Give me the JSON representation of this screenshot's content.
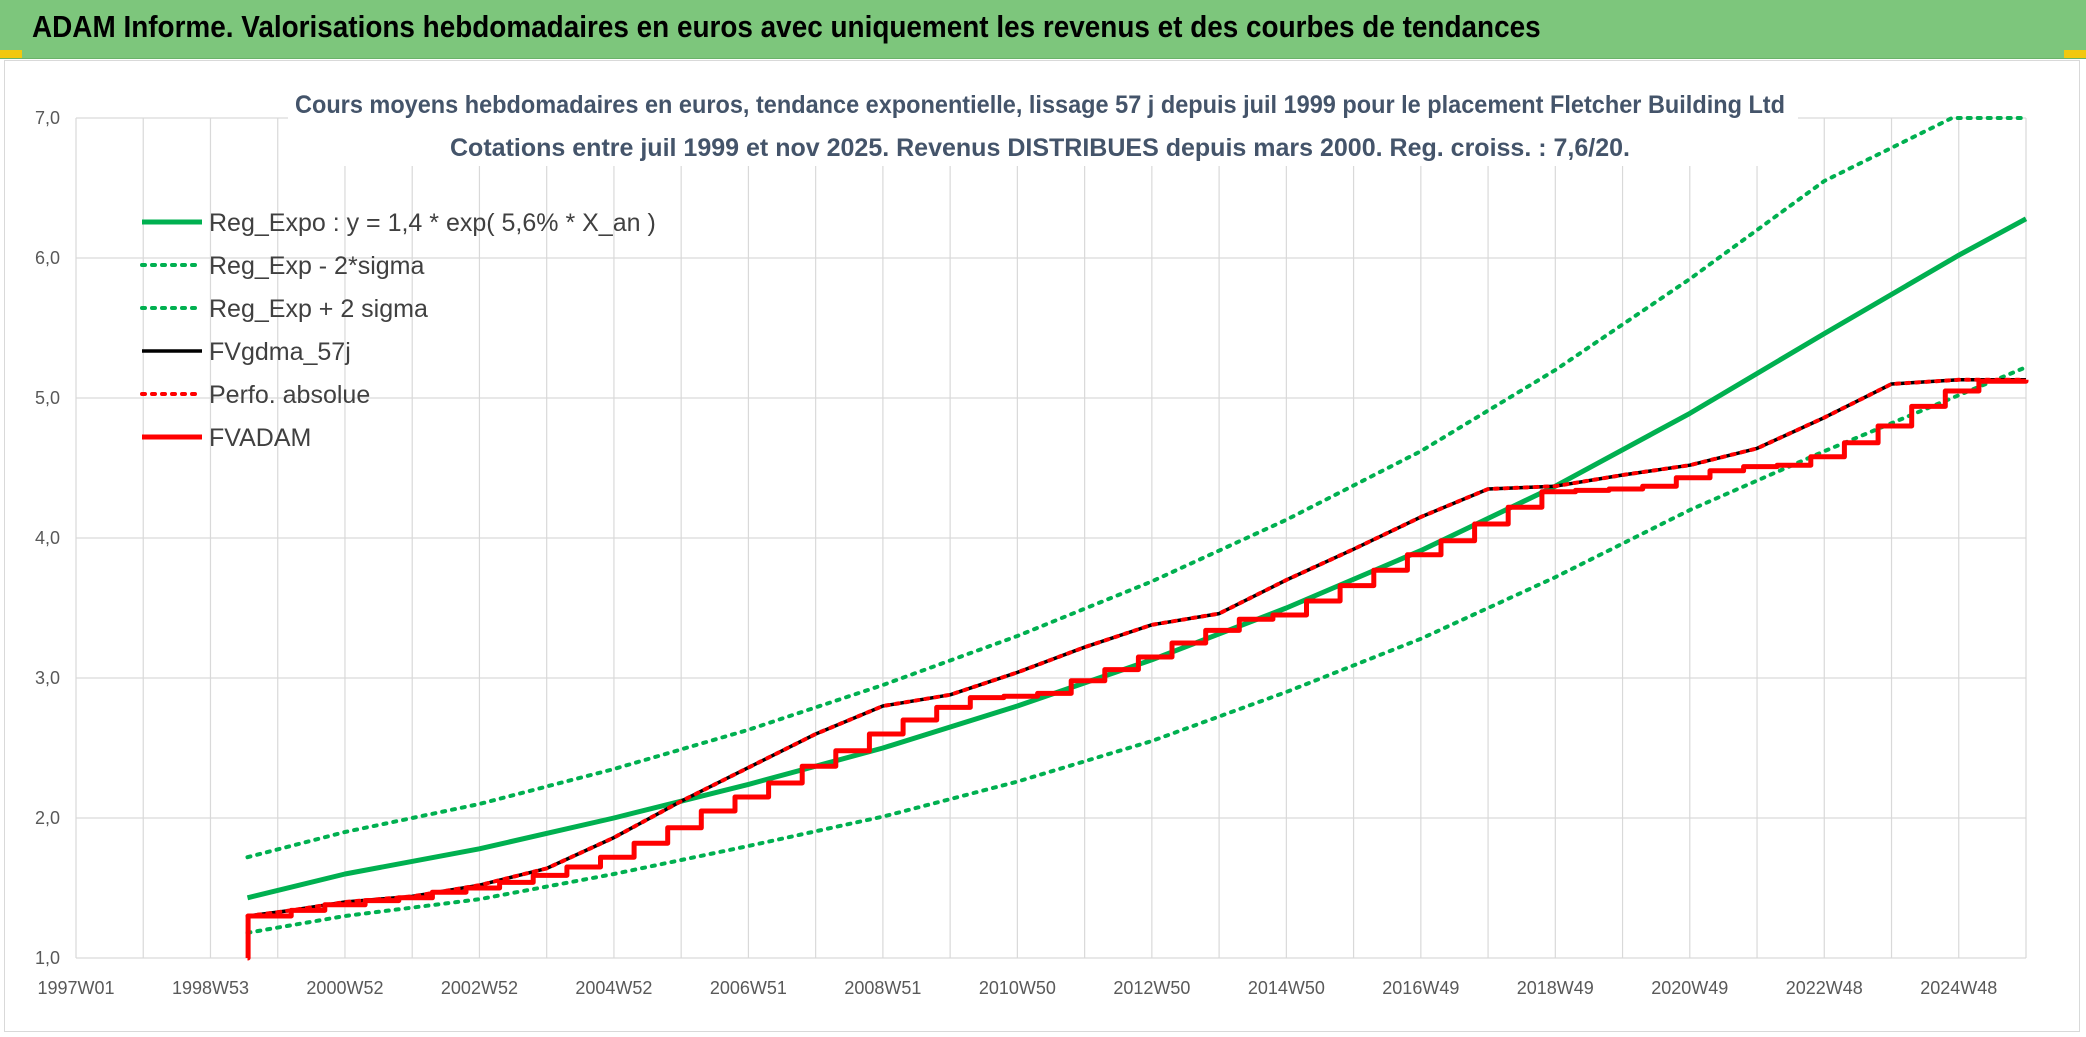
{
  "header": {
    "title": "ADAM Informe. Valorisations hebdomadaires en euros avec uniquement les revenus et des courbes de tendances"
  },
  "colors": {
    "header_bg": "#7dc67c",
    "trend": "#00b050",
    "fvgdma": "#000000",
    "fvadam": "#ff0000",
    "perfo": "#ff0000",
    "grid": "#d9d9d9",
    "axis_text": "#595959",
    "title_text": "#44546a"
  },
  "chart_data": {
    "type": "line",
    "title": "Cours moyens hebdomadaires en euros, tendance exponentielle, lissage 57 j depuis juil 1999 pour le placement Fletcher Building Ltd",
    "subtitle": "Cotations entre juil 1999  et nov 2025. Revenus DISTRIBUES depuis mars 2000. Reg. croiss. : 7,6/20.",
    "xlabel": "",
    "ylabel": "",
    "x_ticks": [
      "1997W01",
      "1998W53",
      "2000W52",
      "2002W52",
      "2004W52",
      "2006W51",
      "2008W51",
      "2010W50",
      "2012W50",
      "2014W50",
      "2016W49",
      "2018W49",
      "2020W49",
      "2022W48",
      "2024W48"
    ],
    "xlim": [
      1997.0,
      2026.0
    ],
    "ylim": [
      1.0,
      7.0
    ],
    "y_ticks": [
      "1,0",
      "2,0",
      "3,0",
      "4,0",
      "5,0",
      "6,0",
      "7,0"
    ],
    "y_tick_values": [
      1,
      2,
      3,
      4,
      5,
      6,
      7
    ],
    "grid": true,
    "legend_position": "top-left",
    "series": [
      {
        "name": "Reg_Expo : y = 1,4 * exp( 5,6% *  X_an )",
        "style": "solid-thick",
        "color": "#00b050",
        "x": [
          1999.55,
          2001,
          2003,
          2005,
          2007,
          2009,
          2011,
          2013,
          2015,
          2017,
          2019,
          2021,
          2023,
          2025,
          2026.0
        ],
        "y": [
          1.43,
          1.6,
          1.78,
          2.0,
          2.24,
          2.5,
          2.8,
          3.13,
          3.5,
          3.91,
          4.37,
          4.89,
          5.46,
          6.02,
          6.28
        ]
      },
      {
        "name": "Reg_Exp - 2*sigma",
        "style": "dotted",
        "color": "#00b050",
        "x": [
          1999.55,
          2001,
          2003,
          2005,
          2007,
          2009,
          2011,
          2013,
          2015,
          2017,
          2019,
          2021,
          2023,
          2025,
          2026.0
        ],
        "y": [
          1.18,
          1.3,
          1.42,
          1.6,
          1.8,
          2.01,
          2.26,
          2.55,
          2.9,
          3.28,
          3.72,
          4.2,
          4.62,
          5.02,
          5.22
        ]
      },
      {
        "name": "Reg_Exp + 2 sigma",
        "style": "dotted",
        "color": "#00b050",
        "x": [
          1999.55,
          2001,
          2003,
          2005,
          2007,
          2009,
          2011,
          2013,
          2015,
          2017,
          2019,
          2021,
          2023,
          2024.9,
          2026.0
        ],
        "y": [
          1.72,
          1.9,
          2.1,
          2.35,
          2.63,
          2.95,
          3.3,
          3.69,
          4.13,
          4.62,
          5.2,
          5.85,
          6.55,
          7.0,
          7.0
        ]
      },
      {
        "name": "FVgdma_57j",
        "style": "solid",
        "color": "#000000",
        "x": [
          1999.55,
          2000.2,
          2001,
          2002,
          2003,
          2004,
          2005,
          2006,
          2007,
          2008,
          2009,
          2010,
          2011,
          2012,
          2013,
          2014,
          2015,
          2016,
          2017,
          2018,
          2019,
          2020,
          2021,
          2022,
          2023,
          2024,
          2025,
          2026.0
        ],
        "y": [
          1.3,
          1.34,
          1.4,
          1.44,
          1.52,
          1.64,
          1.86,
          2.12,
          2.36,
          2.6,
          2.8,
          2.88,
          3.04,
          3.22,
          3.38,
          3.46,
          3.7,
          3.92,
          4.15,
          4.35,
          4.37,
          4.45,
          4.52,
          4.64,
          4.86,
          5.1,
          5.13,
          5.13
        ]
      },
      {
        "name": "Perfo. absolue",
        "style": "dotted",
        "color": "#ff0000",
        "x": [
          1999.55,
          2000.2,
          2001,
          2002,
          2003,
          2004,
          2005,
          2006,
          2007,
          2008,
          2009,
          2010,
          2011,
          2012,
          2013,
          2014,
          2015,
          2016,
          2017,
          2018,
          2019,
          2020,
          2021,
          2022,
          2023,
          2024,
          2025,
          2026.0
        ],
        "y": [
          1.3,
          1.34,
          1.4,
          1.44,
          1.52,
          1.64,
          1.86,
          2.12,
          2.36,
          2.6,
          2.8,
          2.88,
          3.04,
          3.22,
          3.38,
          3.46,
          3.7,
          3.92,
          4.15,
          4.35,
          4.37,
          4.45,
          4.52,
          4.64,
          4.86,
          5.1,
          5.13,
          5.13
        ]
      },
      {
        "name": "FVADAM",
        "style": "step-thick",
        "color": "#ff0000",
        "x": [
          1999.55,
          1999.56,
          2000.2,
          2000.7,
          2001.3,
          2001.8,
          2002.3,
          2002.8,
          2003.3,
          2003.8,
          2004.3,
          2004.8,
          2005.3,
          2005.8,
          2006.3,
          2006.8,
          2007.3,
          2007.8,
          2008.3,
          2008.8,
          2009.3,
          2009.8,
          2010.3,
          2010.8,
          2011.3,
          2011.8,
          2012.3,
          2012.8,
          2013.3,
          2013.8,
          2014.3,
          2014.8,
          2015.3,
          2015.8,
          2016.3,
          2016.8,
          2017.3,
          2017.8,
          2018.3,
          2018.8,
          2019.3,
          2019.8,
          2020.3,
          2020.8,
          2021.3,
          2021.8,
          2022.3,
          2022.8,
          2023.3,
          2023.8,
          2024.3,
          2024.8,
          2025.3,
          2026.0
        ],
        "y": [
          1.0,
          1.3,
          1.34,
          1.38,
          1.41,
          1.43,
          1.47,
          1.5,
          1.54,
          1.59,
          1.65,
          1.72,
          1.82,
          1.93,
          2.05,
          2.15,
          2.25,
          2.37,
          2.48,
          2.6,
          2.7,
          2.79,
          2.86,
          2.87,
          2.89,
          2.98,
          3.06,
          3.15,
          3.25,
          3.34,
          3.42,
          3.45,
          3.55,
          3.66,
          3.77,
          3.88,
          3.98,
          4.1,
          4.22,
          4.33,
          4.34,
          4.35,
          4.37,
          4.43,
          4.48,
          4.51,
          4.52,
          4.58,
          4.68,
          4.8,
          4.94,
          5.05,
          5.12,
          5.13
        ]
      }
    ]
  }
}
